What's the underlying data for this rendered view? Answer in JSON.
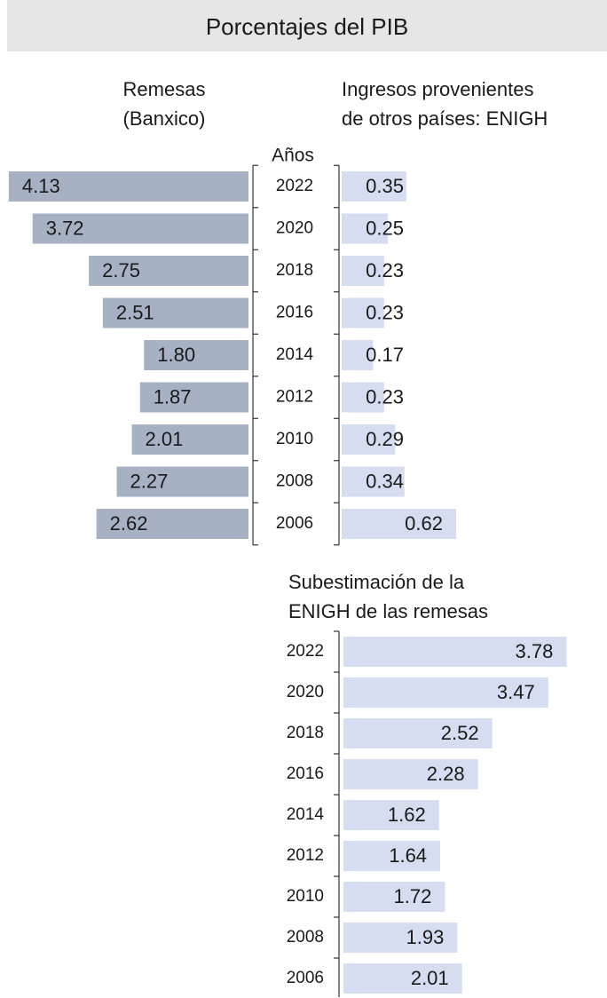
{
  "title": "Porcentajes del PIB",
  "chart_data": [
    {
      "type": "bar",
      "direction": "left",
      "title_lines": [
        "Remesas",
        "(Banxico)"
      ],
      "y_label": "Años",
      "categories": [
        "2022",
        "2020",
        "2018",
        "2016",
        "2014",
        "2012",
        "2010",
        "2008",
        "2006"
      ],
      "values": [
        4.13,
        3.72,
        2.75,
        2.51,
        1.8,
        1.87,
        2.01,
        2.27,
        2.62
      ],
      "value_labels": [
        "4.13",
        "3.72",
        "2.75",
        "2.51",
        "1.80",
        "1.87",
        "2.01",
        "2.27",
        "2.62"
      ],
      "color": "#a6b1c4"
    },
    {
      "type": "bar",
      "direction": "right",
      "title_lines": [
        "Ingresos provenientes",
        "de otros países: ENIGH"
      ],
      "values": [
        0.35,
        0.25,
        0.23,
        0.23,
        0.17,
        0.23,
        0.29,
        0.34,
        0.62
      ],
      "color": "#d6ddf0"
    },
    {
      "type": "bar",
      "direction": "right",
      "title_lines": [
        "Subestimación de la",
        "ENIGH de las remesas"
      ],
      "categories": [
        "2022",
        "2020",
        "2018",
        "2016",
        "2014",
        "2012",
        "2010",
        "2008",
        "2006"
      ],
      "values": [
        3.78,
        3.47,
        2.52,
        2.28,
        1.62,
        1.64,
        1.72,
        1.93,
        2.01
      ],
      "color": "#d6ddf0"
    }
  ]
}
